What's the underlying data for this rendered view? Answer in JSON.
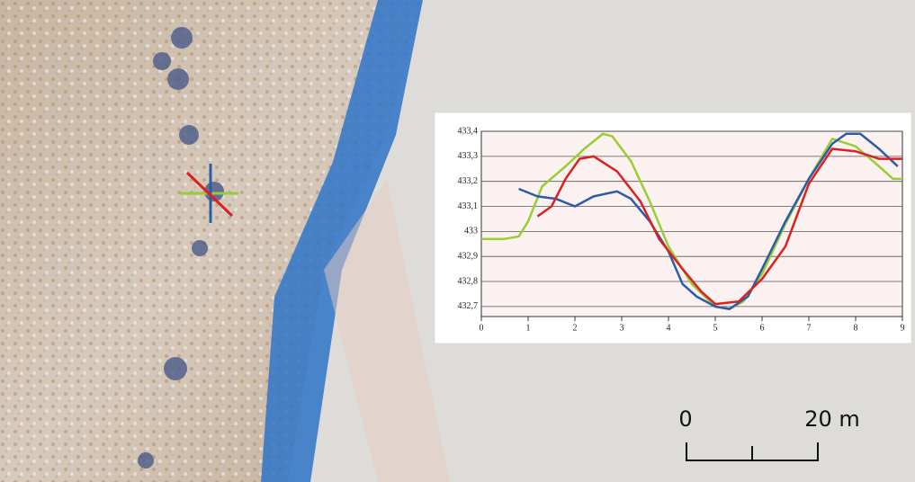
{
  "chart_data": {
    "type": "line",
    "xlim": [
      0,
      9
    ],
    "xticks": [
      0,
      1,
      2,
      3,
      4,
      5,
      6,
      7,
      8,
      9
    ],
    "ylim": [
      432.66,
      433.4
    ],
    "yticks": [
      {
        "value": 432.7,
        "label": "432,7"
      },
      {
        "value": 432.8,
        "label": "432,8"
      },
      {
        "value": 432.9,
        "label": "432,9"
      },
      {
        "value": 433,
        "label": "433"
      },
      {
        "value": 433.1,
        "label": "433,1"
      },
      {
        "value": 433.2,
        "label": "433,2"
      },
      {
        "value": 433.3,
        "label": "433,3"
      },
      {
        "value": 433.4,
        "label": "433,4"
      }
    ],
    "grid": true,
    "series": [
      {
        "color": "#9acd32",
        "x": [
          0,
          0.5,
          0.8,
          1.0,
          1.3,
          1.8,
          2.2,
          2.6,
          2.8,
          3.2,
          3.6,
          4.0,
          4.5,
          5.0,
          5.3,
          5.6,
          6.0,
          6.5,
          7.0,
          7.5,
          8.0,
          8.5,
          8.8,
          9.0
        ],
        "values": [
          432.97,
          432.97,
          432.98,
          433.04,
          433.18,
          433.26,
          433.33,
          433.39,
          433.38,
          433.28,
          433.12,
          432.94,
          432.79,
          432.7,
          432.69,
          432.72,
          432.83,
          433.03,
          433.21,
          433.37,
          433.34,
          433.26,
          433.21,
          433.21
        ]
      },
      {
        "color": "#2a5ca8",
        "x": [
          0.8,
          1.2,
          1.6,
          2.0,
          2.4,
          2.9,
          3.2,
          3.6,
          4.0,
          4.3,
          4.6,
          5.0,
          5.3,
          5.7,
          6.0,
          6.5,
          7.0,
          7.5,
          7.8,
          8.1,
          8.5,
          8.9
        ],
        "values": [
          433.17,
          433.14,
          433.13,
          433.1,
          433.14,
          433.16,
          433.13,
          433.04,
          432.92,
          432.79,
          432.74,
          432.7,
          432.69,
          432.74,
          432.85,
          433.04,
          433.21,
          433.35,
          433.39,
          433.39,
          433.33,
          433.26
        ]
      },
      {
        "color": "#dc2020",
        "x": [
          1.2,
          1.5,
          1.8,
          2.1,
          2.4,
          2.9,
          3.4,
          3.8,
          4.3,
          4.7,
          5.0,
          5.5,
          6.0,
          6.5,
          7.0,
          7.5,
          8.0,
          8.5,
          9.0
        ],
        "values": [
          433.06,
          433.1,
          433.21,
          433.29,
          433.3,
          433.24,
          433.12,
          432.97,
          432.85,
          432.76,
          432.71,
          432.72,
          432.81,
          432.94,
          433.19,
          433.33,
          433.32,
          433.29,
          433.29
        ]
      }
    ]
  },
  "scale_bar": {
    "labels": [
      "0",
      "20 m"
    ]
  }
}
